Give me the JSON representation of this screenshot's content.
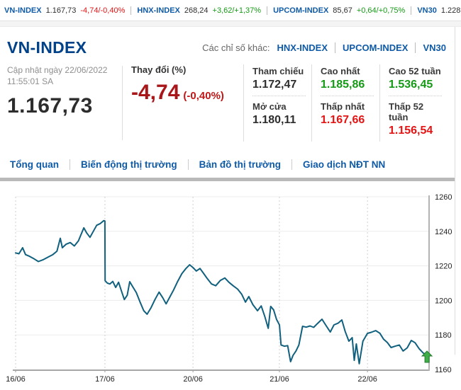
{
  "ticker": {
    "items": [
      {
        "name": "VN-INDEX",
        "value": "1.167,73",
        "change": "-4,74/-0,40%",
        "direction": "down"
      },
      {
        "name": "HNX-INDEX",
        "value": "268,24",
        "change": "+3,62/+1,37%",
        "direction": "up"
      },
      {
        "name": "UPCOM-INDEX",
        "value": "85,67",
        "change": "+0,64/+0,75%",
        "direction": "up"
      },
      {
        "name": "VN30",
        "value": "1.228",
        "change": "",
        "direction": "neutral"
      }
    ]
  },
  "header": {
    "title": "VN-INDEX",
    "other_indices_label": "Các chỉ số khác:",
    "other_indices": [
      "HNX-INDEX",
      "UPCOM-INDEX",
      "VN30"
    ]
  },
  "summary": {
    "updated_label": "Cập nhật ngày 22/06/2022",
    "updated_time": "11:55:01 SA",
    "last_value": "1.167,73",
    "change_label": "Thay đổi (%)",
    "change_value": "-4,74",
    "change_percent": "(-0,40%)",
    "stats": [
      {
        "label": "Tham chiếu",
        "value": "1.172,47",
        "color": "neutral"
      },
      {
        "label": "Mở cửa",
        "value": "1.180,11",
        "color": "neutral"
      },
      {
        "label": "Cao nhất",
        "value": "1.185,86",
        "color": "up"
      },
      {
        "label": "Thấp nhất",
        "value": "1.167,66",
        "color": "down"
      },
      {
        "label": "Cao 52 tuần",
        "value": "1.536,45",
        "color": "up"
      },
      {
        "label": "Thấp 52 tuần",
        "value": "1.156,54",
        "color": "down"
      }
    ]
  },
  "tabs": [
    {
      "label": "Tổng quan"
    },
    {
      "label": "Biến động thị trường"
    },
    {
      "label": "Bản đồ thị trường"
    },
    {
      "label": "Giao dịch NĐT NN"
    }
  ],
  "chart_data": {
    "type": "line",
    "title": "",
    "xlabel": "",
    "ylabel": "",
    "ylim": [
      1160,
      1260
    ],
    "y_ticks": [
      1160,
      1180,
      1200,
      1220,
      1240,
      1260
    ],
    "y_axis_side": "right",
    "grid": true,
    "x_tick_labels": [
      "16/06",
      "17/06",
      "20/06",
      "21/06",
      "22/06"
    ],
    "x_tick_positions": [
      0,
      0.216,
      0.429,
      0.638,
      0.851
    ],
    "line_color": "#10607e",
    "last_tick_marker": {
      "type": "up-arrow",
      "color": "#3fae49",
      "border": "#237a2b"
    },
    "points": [
      [
        0.0,
        1227.5
      ],
      [
        0.008,
        1227.0
      ],
      [
        0.017,
        1230.5
      ],
      [
        0.024,
        1226.5
      ],
      [
        0.034,
        1225.5
      ],
      [
        0.045,
        1224.0
      ],
      [
        0.055,
        1222.5
      ],
      [
        0.066,
        1223.5
      ],
      [
        0.078,
        1225.0
      ],
      [
        0.09,
        1226.5
      ],
      [
        0.1,
        1228.5
      ],
      [
        0.108,
        1236.0
      ],
      [
        0.113,
        1230.5
      ],
      [
        0.122,
        1232.5
      ],
      [
        0.132,
        1233.5
      ],
      [
        0.142,
        1231.5
      ],
      [
        0.152,
        1234.5
      ],
      [
        0.158,
        1238.0
      ],
      [
        0.165,
        1242.0
      ],
      [
        0.172,
        1239.0
      ],
      [
        0.18,
        1236.5
      ],
      [
        0.188,
        1240.0
      ],
      [
        0.196,
        1243.5
      ],
      [
        0.205,
        1244.5
      ],
      [
        0.213,
        1246.2
      ],
      [
        0.216,
        1246.0
      ],
      [
        0.2165,
        1211.4
      ],
      [
        0.222,
        1210.0
      ],
      [
        0.228,
        1209.5
      ],
      [
        0.235,
        1211.0
      ],
      [
        0.242,
        1207.5
      ],
      [
        0.249,
        1210.5
      ],
      [
        0.256,
        1205.5
      ],
      [
        0.263,
        1200.5
      ],
      [
        0.27,
        1203.0
      ],
      [
        0.276,
        1210.8
      ],
      [
        0.283,
        1208.0
      ],
      [
        0.292,
        1204.5
      ],
      [
        0.301,
        1199.0
      ],
      [
        0.31,
        1194.0
      ],
      [
        0.318,
        1192.0
      ],
      [
        0.327,
        1195.5
      ],
      [
        0.337,
        1200.5
      ],
      [
        0.347,
        1204.8
      ],
      [
        0.356,
        1201.5
      ],
      [
        0.364,
        1198.0
      ],
      [
        0.373,
        1202.0
      ],
      [
        0.382,
        1206.0
      ],
      [
        0.392,
        1211.0
      ],
      [
        0.402,
        1215.5
      ],
      [
        0.412,
        1218.5
      ],
      [
        0.421,
        1220.6
      ],
      [
        0.429,
        1219.0
      ],
      [
        0.437,
        1217.0
      ],
      [
        0.446,
        1218.5
      ],
      [
        0.455,
        1215.5
      ],
      [
        0.464,
        1212.5
      ],
      [
        0.474,
        1209.5
      ],
      [
        0.484,
        1208.5
      ],
      [
        0.495,
        1211.5
      ],
      [
        0.506,
        1213.0
      ],
      [
        0.516,
        1210.5
      ],
      [
        0.526,
        1208.5
      ],
      [
        0.537,
        1206.5
      ],
      [
        0.547,
        1203.5
      ],
      [
        0.556,
        1199.0
      ],
      [
        0.564,
        1202.2
      ],
      [
        0.574,
        1197.5
      ],
      [
        0.585,
        1194.0
      ],
      [
        0.594,
        1196.8
      ],
      [
        0.603,
        1190.5
      ],
      [
        0.611,
        1183.8
      ],
      [
        0.617,
        1196.5
      ],
      [
        0.624,
        1194.5
      ],
      [
        0.631,
        1189.0
      ],
      [
        0.638,
        1185.8
      ],
      [
        0.642,
        1174.2
      ],
      [
        0.65,
        1173.5
      ],
      [
        0.658,
        1173.8
      ],
      [
        0.665,
        1164.5
      ],
      [
        0.671,
        1168.2
      ],
      [
        0.678,
        1170.7
      ],
      [
        0.685,
        1174.2
      ],
      [
        0.694,
        1185.0
      ],
      [
        0.703,
        1184.5
      ],
      [
        0.712,
        1185.2
      ],
      [
        0.721,
        1184.4
      ],
      [
        0.73,
        1186.6
      ],
      [
        0.741,
        1189.1
      ],
      [
        0.752,
        1185.0
      ],
      [
        0.761,
        1181.7
      ],
      [
        0.77,
        1185.8
      ],
      [
        0.78,
        1186.8
      ],
      [
        0.789,
        1188.7
      ],
      [
        0.797,
        1182.0
      ],
      [
        0.806,
        1176.4
      ],
      [
        0.814,
        1178.4
      ],
      [
        0.819,
        1165.3
      ],
      [
        0.824,
        1174.8
      ],
      [
        0.831,
        1163.3
      ],
      [
        0.84,
        1176.4
      ],
      [
        0.851,
        1180.9
      ],
      [
        0.86,
        1181.5
      ],
      [
        0.871,
        1182.5
      ],
      [
        0.881,
        1181.0
      ],
      [
        0.89,
        1177.5
      ],
      [
        0.899,
        1175.6
      ],
      [
        0.908,
        1172.7
      ],
      [
        0.918,
        1173.5
      ],
      [
        0.928,
        1174.2
      ],
      [
        0.937,
        1170.7
      ],
      [
        0.947,
        1172.5
      ],
      [
        0.957,
        1176.8
      ],
      [
        0.966,
        1175.5
      ],
      [
        0.976,
        1172.0
      ],
      [
        0.986,
        1169.5
      ],
      [
        0.995,
        1168.2
      ]
    ]
  }
}
